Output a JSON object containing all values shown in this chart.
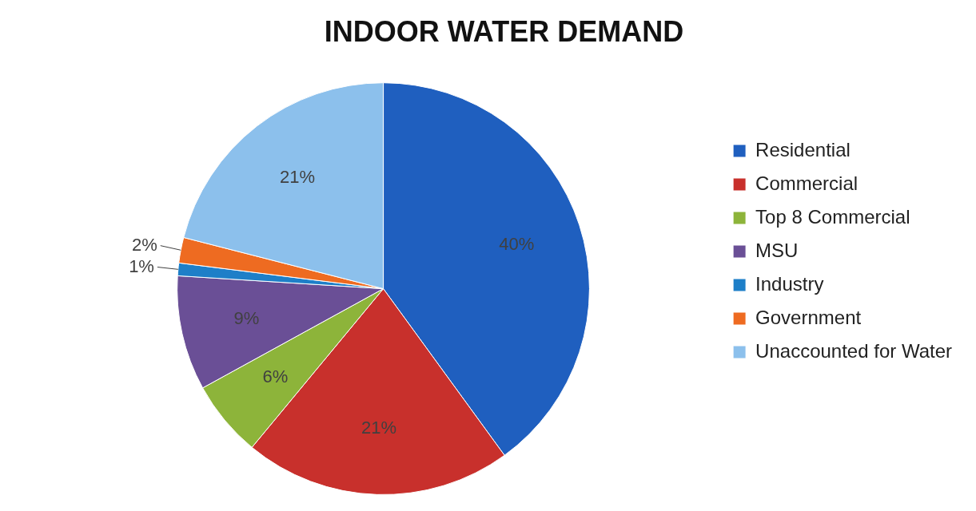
{
  "chart_data": {
    "type": "pie",
    "title": "INDOOR WATER DEMAND",
    "categories": [
      "Residential",
      "Commercial",
      "Top 8 Commercial",
      "MSU",
      "Industry",
      "Government",
      "Unaccounted for Water"
    ],
    "values": [
      40,
      21,
      6,
      9,
      1,
      2,
      21
    ],
    "colors": [
      "#1f5fbf",
      "#c8302c",
      "#8db43a",
      "#6a4f96",
      "#1e7fc8",
      "#ee6b21",
      "#8cc0ec"
    ],
    "value_labels": [
      "40%",
      "21%",
      "6%",
      "9%",
      "1%",
      "2%",
      "21%"
    ],
    "legend": "right"
  }
}
